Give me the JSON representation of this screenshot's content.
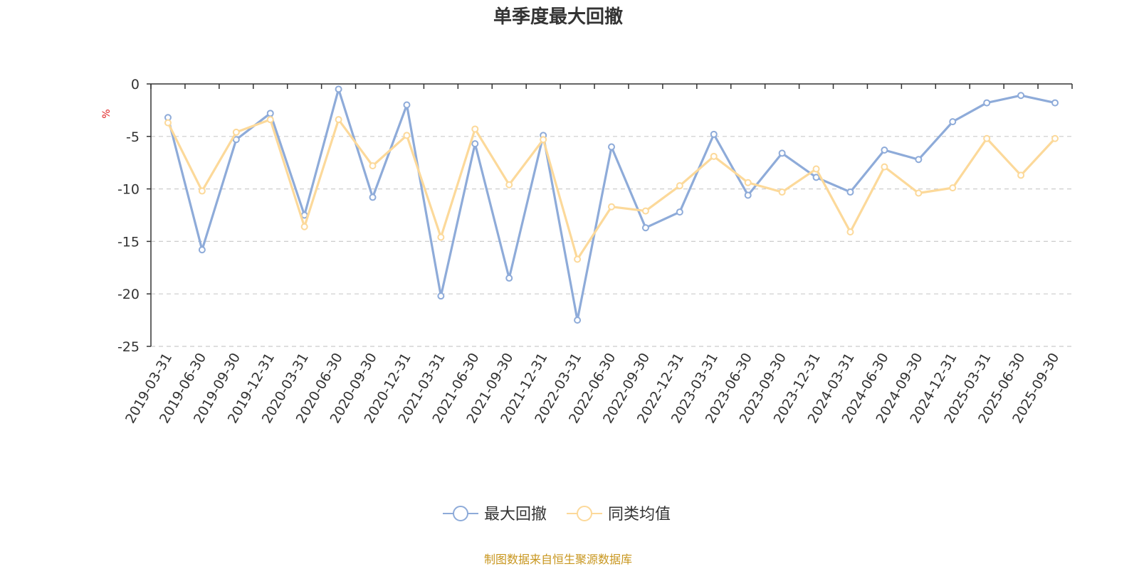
{
  "chart_data": {
    "type": "line",
    "title": "单季度最大回撤",
    "ylabel": "%",
    "ylim": [
      -25,
      0
    ],
    "yticks": [
      0,
      -5,
      -10,
      -15,
      -20,
      -25
    ],
    "grid": true,
    "legend_position": "bottom-center",
    "categories": [
      "2019-03-31",
      "2019-06-30",
      "2019-09-30",
      "2019-12-31",
      "2020-03-31",
      "2020-06-30",
      "2020-09-30",
      "2020-12-31",
      "2021-03-31",
      "2021-06-30",
      "2021-09-30",
      "2021-12-31",
      "2022-03-31",
      "2022-06-30",
      "2022-09-30",
      "2022-12-31",
      "2023-03-31",
      "2023-06-30",
      "2023-09-30",
      "2023-12-31",
      "2024-03-31",
      "2024-06-30",
      "2024-09-30",
      "2024-12-31",
      "2025-03-31",
      "2025-06-30",
      "2025-09-30"
    ],
    "series": [
      {
        "name": "最大回撤",
        "color": "#8eabd9",
        "values": [
          -3.2,
          -15.8,
          -5.3,
          -2.8,
          -12.5,
          -0.5,
          -10.8,
          -2.0,
          -20.2,
          -5.7,
          -18.5,
          -4.9,
          -22.5,
          -6.0,
          -13.7,
          -12.2,
          -4.8,
          -10.6,
          -6.6,
          -8.9,
          -10.3,
          -6.3,
          -7.2,
          -3.6,
          -1.8,
          -1.1,
          -1.8
        ]
      },
      {
        "name": "同类均值",
        "color": "#fcd99a",
        "values": [
          -3.7,
          -10.2,
          -4.6,
          -3.4,
          -13.6,
          -3.4,
          -7.8,
          -4.9,
          -14.6,
          -4.3,
          -9.6,
          -5.3,
          -16.7,
          -11.7,
          -12.1,
          -9.7,
          -6.9,
          -9.4,
          -10.3,
          -8.1,
          -14.1,
          -7.9,
          -10.4,
          -9.9,
          -5.2,
          -8.7,
          -5.2
        ]
      }
    ]
  },
  "source_text": "制图数据来自恒生聚源数据库"
}
